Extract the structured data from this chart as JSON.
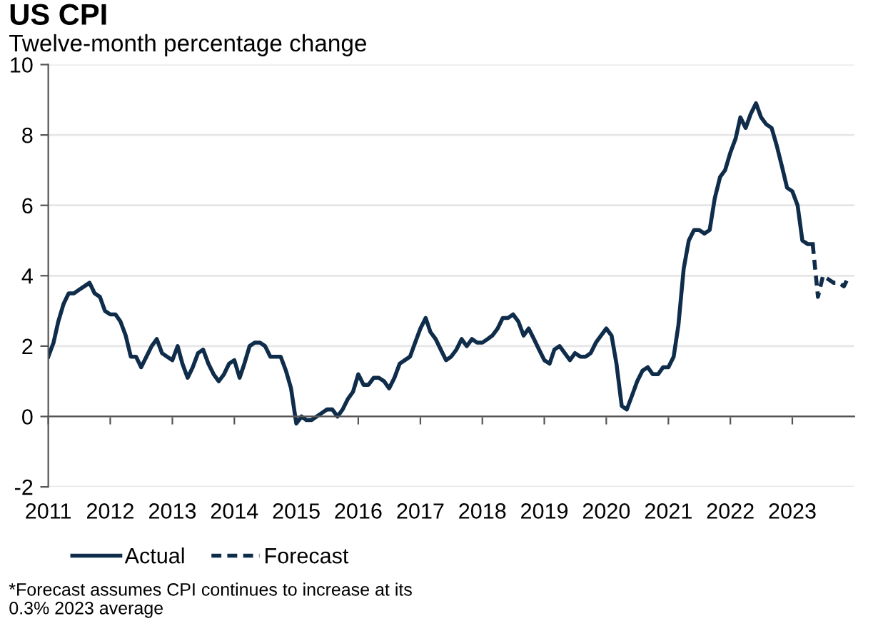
{
  "chart_data": {
    "type": "line",
    "title": "US CPI",
    "subtitle": "Twelve-month percentage change",
    "series": [
      {
        "name": "Actual",
        "color": "#0f2d4a",
        "line_style": "solid",
        "x": [
          "2011-01",
          "2011-02",
          "2011-03",
          "2011-04",
          "2011-05",
          "2011-06",
          "2011-07",
          "2011-08",
          "2011-09",
          "2011-10",
          "2011-11",
          "2011-12",
          "2012-01",
          "2012-02",
          "2012-03",
          "2012-04",
          "2012-05",
          "2012-06",
          "2012-07",
          "2012-08",
          "2012-09",
          "2012-10",
          "2012-11",
          "2012-12",
          "2013-01",
          "2013-02",
          "2013-03",
          "2013-04",
          "2013-05",
          "2013-06",
          "2013-07",
          "2013-08",
          "2013-09",
          "2013-10",
          "2013-11",
          "2013-12",
          "2014-01",
          "2014-02",
          "2014-03",
          "2014-04",
          "2014-05",
          "2014-06",
          "2014-07",
          "2014-08",
          "2014-09",
          "2014-10",
          "2014-11",
          "2014-12",
          "2015-01",
          "2015-02",
          "2015-03",
          "2015-04",
          "2015-05",
          "2015-06",
          "2015-07",
          "2015-08",
          "2015-09",
          "2015-10",
          "2015-11",
          "2015-12",
          "2016-01",
          "2016-02",
          "2016-03",
          "2016-04",
          "2016-05",
          "2016-06",
          "2016-07",
          "2016-08",
          "2016-09",
          "2016-10",
          "2016-11",
          "2016-12",
          "2017-01",
          "2017-02",
          "2017-03",
          "2017-04",
          "2017-05",
          "2017-06",
          "2017-07",
          "2017-08",
          "2017-09",
          "2017-10",
          "2017-11",
          "2017-12",
          "2018-01",
          "2018-02",
          "2018-03",
          "2018-04",
          "2018-05",
          "2018-06",
          "2018-07",
          "2018-08",
          "2018-09",
          "2018-10",
          "2018-11",
          "2018-12",
          "2019-01",
          "2019-02",
          "2019-03",
          "2019-04",
          "2019-05",
          "2019-06",
          "2019-07",
          "2019-08",
          "2019-09",
          "2019-10",
          "2019-11",
          "2019-12",
          "2020-01",
          "2020-02",
          "2020-03",
          "2020-04",
          "2020-05",
          "2020-06",
          "2020-07",
          "2020-08",
          "2020-09",
          "2020-10",
          "2020-11",
          "2020-12",
          "2021-01",
          "2021-02",
          "2021-03",
          "2021-04",
          "2021-05",
          "2021-06",
          "2021-07",
          "2021-08",
          "2021-09",
          "2021-10",
          "2021-11",
          "2021-12",
          "2022-01",
          "2022-02",
          "2022-03",
          "2022-04",
          "2022-05",
          "2022-06",
          "2022-07",
          "2022-08",
          "2022-09",
          "2022-10",
          "2022-11",
          "2022-12",
          "2023-01",
          "2023-02",
          "2023-03",
          "2023-04",
          "2023-05"
        ],
        "values": [
          1.7,
          2.1,
          2.7,
          3.2,
          3.5,
          3.5,
          3.6,
          3.7,
          3.8,
          3.5,
          3.4,
          3.0,
          2.9,
          2.9,
          2.7,
          2.3,
          1.7,
          1.7,
          1.4,
          1.7,
          2.0,
          2.2,
          1.8,
          1.7,
          1.6,
          2.0,
          1.5,
          1.1,
          1.4,
          1.8,
          1.9,
          1.5,
          1.2,
          1.0,
          1.2,
          1.5,
          1.6,
          1.1,
          1.5,
          2.0,
          2.1,
          2.1,
          2.0,
          1.7,
          1.7,
          1.7,
          1.3,
          0.8,
          -0.2,
          0.0,
          -0.1,
          -0.1,
          0.0,
          0.1,
          0.2,
          0.2,
          0.0,
          0.2,
          0.5,
          0.7,
          1.2,
          0.9,
          0.9,
          1.1,
          1.1,
          1.0,
          0.8,
          1.1,
          1.5,
          1.6,
          1.7,
          2.1,
          2.5,
          2.8,
          2.4,
          2.2,
          1.9,
          1.6,
          1.7,
          1.9,
          2.2,
          2.0,
          2.2,
          2.1,
          2.1,
          2.2,
          2.3,
          2.5,
          2.8,
          2.8,
          2.9,
          2.7,
          2.3,
          2.5,
          2.2,
          1.9,
          1.6,
          1.5,
          1.9,
          2.0,
          1.8,
          1.6,
          1.8,
          1.7,
          1.7,
          1.8,
          2.1,
          2.3,
          2.5,
          2.3,
          1.5,
          0.3,
          0.2,
          0.6,
          1.0,
          1.3,
          1.4,
          1.2,
          1.2,
          1.4,
          1.4,
          1.7,
          2.6,
          4.2,
          5.0,
          5.3,
          5.3,
          5.2,
          5.3,
          6.2,
          6.8,
          7.0,
          7.5,
          7.9,
          8.5,
          8.2,
          8.6,
          8.9,
          8.5,
          8.3,
          8.2,
          7.7,
          7.1,
          6.5,
          6.4,
          6.0,
          5.0,
          4.9,
          4.9
        ]
      },
      {
        "name": "Forecast",
        "color": "#0f2d4a",
        "line_style": "dashed",
        "x": [
          "2023-05",
          "2023-06",
          "2023-07",
          "2023-08",
          "2023-09",
          "2023-10",
          "2023-11",
          "2023-12"
        ],
        "values": [
          4.9,
          3.4,
          4.0,
          3.9,
          3.8,
          3.8,
          3.7,
          4.0
        ]
      }
    ],
    "xlim": [
      "2011-01",
      "2024-01"
    ],
    "xticks": [
      "2011",
      "2012",
      "2013",
      "2014",
      "2015",
      "2016",
      "2017",
      "2018",
      "2019",
      "2020",
      "2021",
      "2022",
      "2023"
    ],
    "ylim": [
      -2,
      10
    ],
    "yticks": [
      -2,
      0,
      2,
      4,
      6,
      8,
      10
    ],
    "grid": "y",
    "legend": "bottom",
    "marker": "none",
    "annotations": [
      "*Forecast assumes CPI continues to increase at its\n0.3% 2023 average"
    ]
  }
}
